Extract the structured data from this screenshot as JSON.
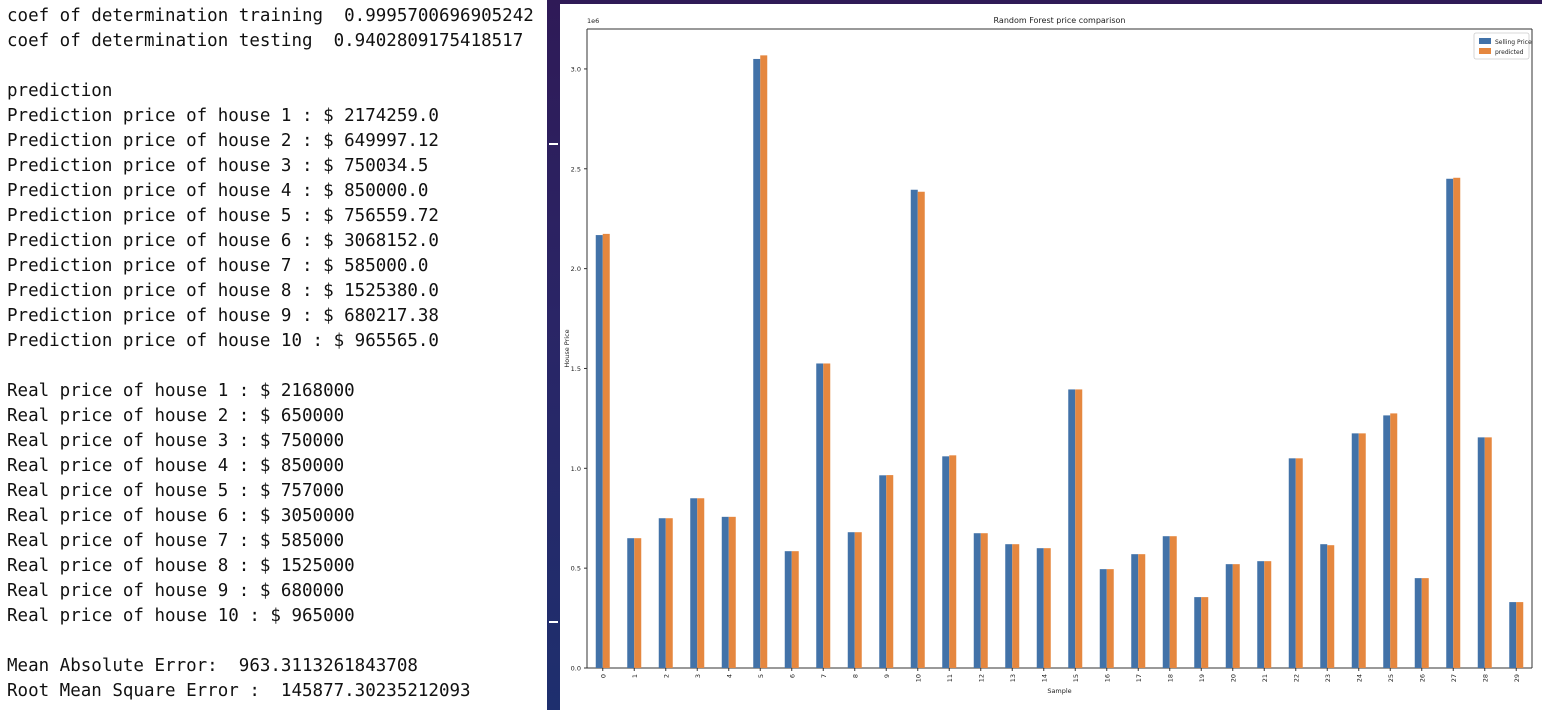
{
  "console": {
    "lines": [
      "coef of determination training  0.9995700696905242",
      "coef of determination testing  0.9402809175418517",
      "",
      "prediction",
      "Prediction price of house 1 : $ 2174259.0",
      "Prediction price of house 2 : $ 649997.12",
      "Prediction price of house 3 : $ 750034.5",
      "Prediction price of house 4 : $ 850000.0",
      "Prediction price of house 5 : $ 756559.72",
      "Prediction price of house 6 : $ 3068152.0",
      "Prediction price of house 7 : $ 585000.0",
      "Prediction price of house 8 : $ 1525380.0",
      "Prediction price of house 9 : $ 680217.38",
      "Prediction price of house 10 : $ 965565.0",
      "",
      "Real price of house 1 : $ 2168000",
      "Real price of house 2 : $ 650000",
      "Real price of house 3 : $ 750000",
      "Real price of house 4 : $ 850000",
      "Real price of house 5 : $ 757000",
      "Real price of house 6 : $ 3050000",
      "Real price of house 7 : $ 585000",
      "Real price of house 8 : $ 1525000",
      "Real price of house 9 : $ 680000",
      "Real price of house 10 : $ 965000",
      "",
      "Mean Absolute Error:  963.3113261843708",
      "Root Mean Square Error :  145877.30235212093"
    ]
  },
  "colors": {
    "selling": "#4272a8",
    "predicted": "#e5873f"
  },
  "chart_data": {
    "type": "bar",
    "title": "Random Forest price comparison",
    "xlabel": "Sample",
    "ylabel": "House Price",
    "offset_label": "1e6",
    "ylim": [
      0,
      3.2
    ],
    "yticks": [
      "0.0",
      "0.5",
      "1.0",
      "1.5",
      "2.0",
      "2.5",
      "3.0"
    ],
    "ytick_values": [
      0,
      0.5,
      1.0,
      1.5,
      2.0,
      2.5,
      3.0
    ],
    "grid": false,
    "legend_position": "top-right",
    "categories": [
      "0",
      "1",
      "2",
      "3",
      "4",
      "5",
      "6",
      "7",
      "8",
      "9",
      "10",
      "11",
      "12",
      "13",
      "14",
      "15",
      "16",
      "17",
      "18",
      "19",
      "20",
      "21",
      "22",
      "23",
      "24",
      "25",
      "26",
      "27",
      "28",
      "29"
    ],
    "series": [
      {
        "name": "Selling Price",
        "values": [
          2.168,
          0.65,
          0.75,
          0.85,
          0.757,
          3.05,
          0.585,
          1.525,
          0.68,
          0.965,
          2.395,
          1.06,
          0.675,
          0.62,
          0.6,
          1.395,
          0.495,
          0.57,
          0.66,
          0.355,
          0.52,
          0.535,
          1.05,
          0.62,
          1.175,
          1.265,
          0.45,
          2.45,
          1.155,
          0.33
        ]
      },
      {
        "name": "predicted",
        "values": [
          2.174,
          0.65,
          0.75,
          0.85,
          0.757,
          3.068,
          0.585,
          1.525,
          0.68,
          0.966,
          2.385,
          1.065,
          0.675,
          0.62,
          0.6,
          1.395,
          0.495,
          0.57,
          0.66,
          0.355,
          0.52,
          0.535,
          1.05,
          0.615,
          1.175,
          1.275,
          0.45,
          2.455,
          1.155,
          0.33
        ]
      }
    ]
  }
}
